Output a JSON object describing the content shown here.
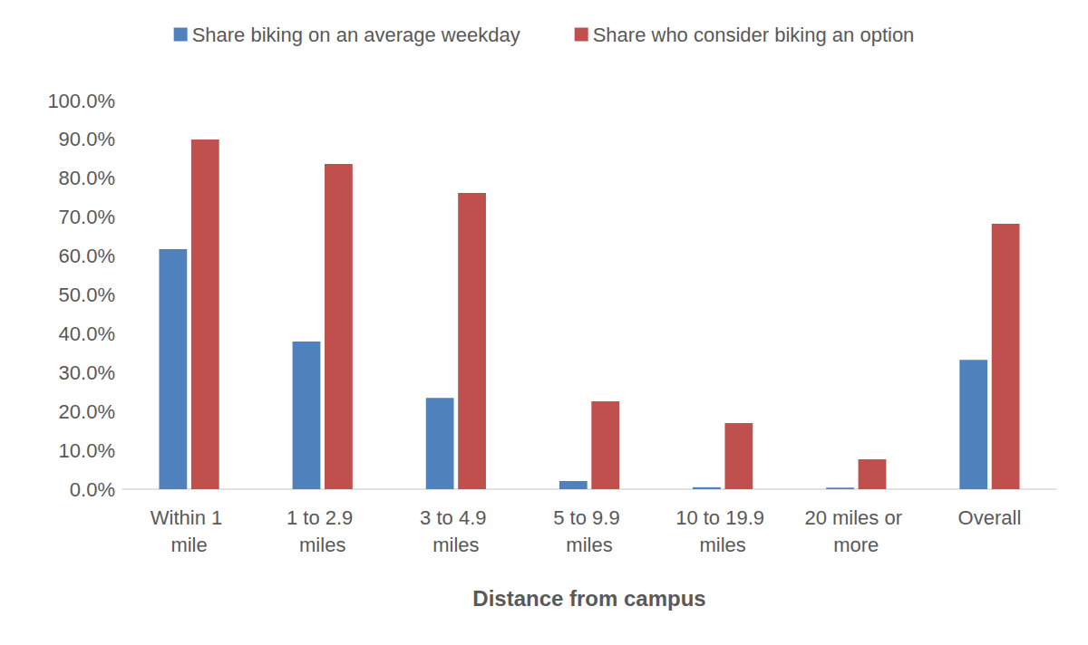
{
  "chart_data": {
    "type": "bar",
    "x_label": "Distance from campus",
    "categories": [
      "Within 1 mile",
      "1 to 2.9 miles",
      "3 to 4.9 miles",
      "5 to 9.9 miles",
      "10 to 19.9 miles",
      "20 miles or more",
      "Overall"
    ],
    "series": [
      {
        "name": "Share biking on an average weekday",
        "color": "#4f81bd",
        "values": [
          61.8,
          38.0,
          23.5,
          2.1,
          0.5,
          0.4,
          33.3
        ]
      },
      {
        "name": "Share who consider biking an option",
        "color": "#c0504d",
        "values": [
          90.0,
          83.7,
          76.2,
          22.6,
          17.0,
          7.7,
          68.3
        ]
      }
    ],
    "ylim": [
      0,
      100
    ],
    "yticks": [
      {
        "value": 0,
        "label": "0.0%"
      },
      {
        "value": 10,
        "label": "10.0%"
      },
      {
        "value": 20,
        "label": "20.0%"
      },
      {
        "value": 30,
        "label": "30.0%"
      },
      {
        "value": 40,
        "label": "40.0%"
      },
      {
        "value": 50,
        "label": "50.0%"
      },
      {
        "value": 60,
        "label": "60.0%"
      },
      {
        "value": 70,
        "label": "70.0%"
      },
      {
        "value": 80,
        "label": "80.0%"
      },
      {
        "value": 90,
        "label": "90.0%"
      },
      {
        "value": 100,
        "label": "100.0%"
      }
    ],
    "grid": false,
    "legend": "top"
  }
}
